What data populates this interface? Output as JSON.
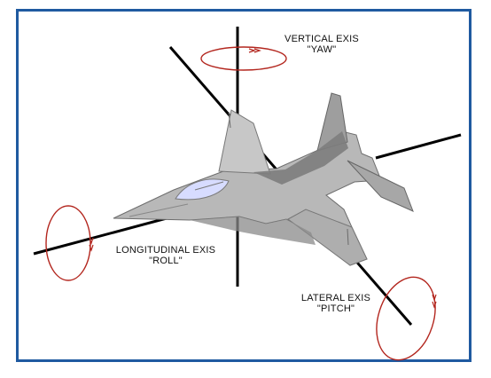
{
  "axes": {
    "vertical": {
      "title": "VERTICAL EXIS",
      "subtitle": "\"YAW\""
    },
    "longitudinal": {
      "title": "LONGITUDINAL EXIS",
      "subtitle": "\"ROLL\""
    },
    "lateral": {
      "title": "LATERAL EXIS",
      "subtitle": "\"PITCH\""
    }
  },
  "colors": {
    "frame_border": "#1f5aa0",
    "axis_line": "#000000",
    "rotation_ring": "#b3261e",
    "aircraft_main": "#b8b8b8",
    "aircraft_shadow": "#7d7d7d",
    "canopy": "#d7dcff"
  }
}
